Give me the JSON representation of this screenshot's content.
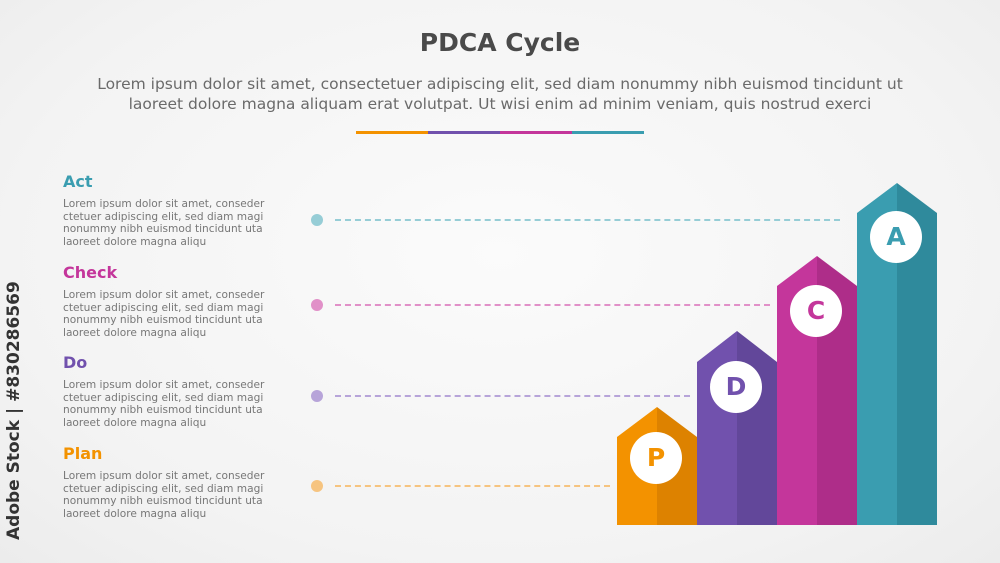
{
  "title": "PDCA Cycle",
  "subtitle": "Lorem ipsum dolor sit amet, consectetuer adipiscing elit, sed diam nonummy nibh euismod tincidunt ut laoreet dolore magna aliquam erat volutpat. Ut wisi enim ad minim veniam, quis nostrud exerci",
  "colors": {
    "plan": "#f39200",
    "do": "#7151ad",
    "check": "#c4369b",
    "act": "#3a9db0"
  },
  "items": [
    {
      "label": "Act",
      "letter": "A",
      "desc": "Lorem ipsum dolor sit amet, conseder ctetuer adipiscing elit, sed diam magi nonummy nibh euismod tincidunt uta laoreet dolore magna aliqu"
    },
    {
      "label": "Check",
      "letter": "C",
      "desc": "Lorem ipsum dolor sit amet, conseder ctetuer adipiscing elit, sed diam magi nonummy nibh euismod tincidunt uta laoreet dolore magna aliqu"
    },
    {
      "label": "Do",
      "letter": "D",
      "desc": "Lorem ipsum dolor sit amet, conseder ctetuer adipiscing elit, sed diam magi nonummy nibh euismod tincidunt uta laoreet dolore magna aliqu"
    },
    {
      "label": "Plan",
      "letter": "P",
      "desc": "Lorem ipsum dolor sit amet, conseder ctetuer adipiscing elit, sed diam magi nonummy nibh euismod tincidunt uta laoreet dolore magna aliqu"
    }
  ],
  "watermark": "Adobe Stock | #830286569"
}
